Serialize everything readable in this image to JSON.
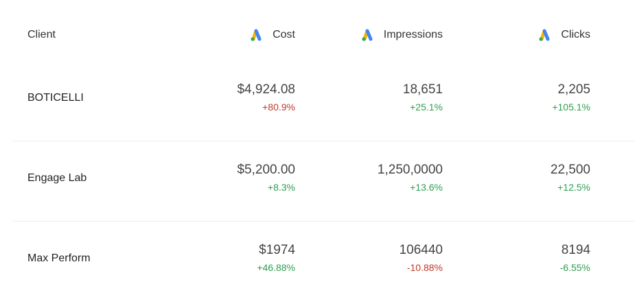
{
  "header": {
    "client": "Client",
    "metrics": [
      "Cost",
      "Impressions",
      "Clicks"
    ]
  },
  "rows": [
    {
      "client": "BOTICELLI",
      "cells": [
        {
          "value": "$4,924.08",
          "change": "+80.9%",
          "change_color": "#c0392b"
        },
        {
          "value": "18,651",
          "change": "+25.1%",
          "change_color": "#2e9e4f"
        },
        {
          "value": "2,205",
          "change": "+105.1%",
          "change_color": "#2e9e4f"
        }
      ]
    },
    {
      "client": "Engage Lab",
      "cells": [
        {
          "value": "$5,200.00",
          "change": "+8.3%",
          "change_color": "#2e9e4f"
        },
        {
          "value": "1,250,0000",
          "change": "+13.6%",
          "change_color": "#2e9e4f"
        },
        {
          "value": "22,500",
          "change": "+12.5%",
          "change_color": "#2e9e4f"
        }
      ]
    },
    {
      "client": "Max Perform",
      "cells": [
        {
          "value": "$1974",
          "change": "+46.88%",
          "change_color": "#2e9e4f"
        },
        {
          "value": "106440",
          "change": "-10.88%",
          "change_color": "#c0392b"
        },
        {
          "value": "8194",
          "change": "-6.55%",
          "change_color": "#2e9e4f"
        }
      ]
    }
  ]
}
